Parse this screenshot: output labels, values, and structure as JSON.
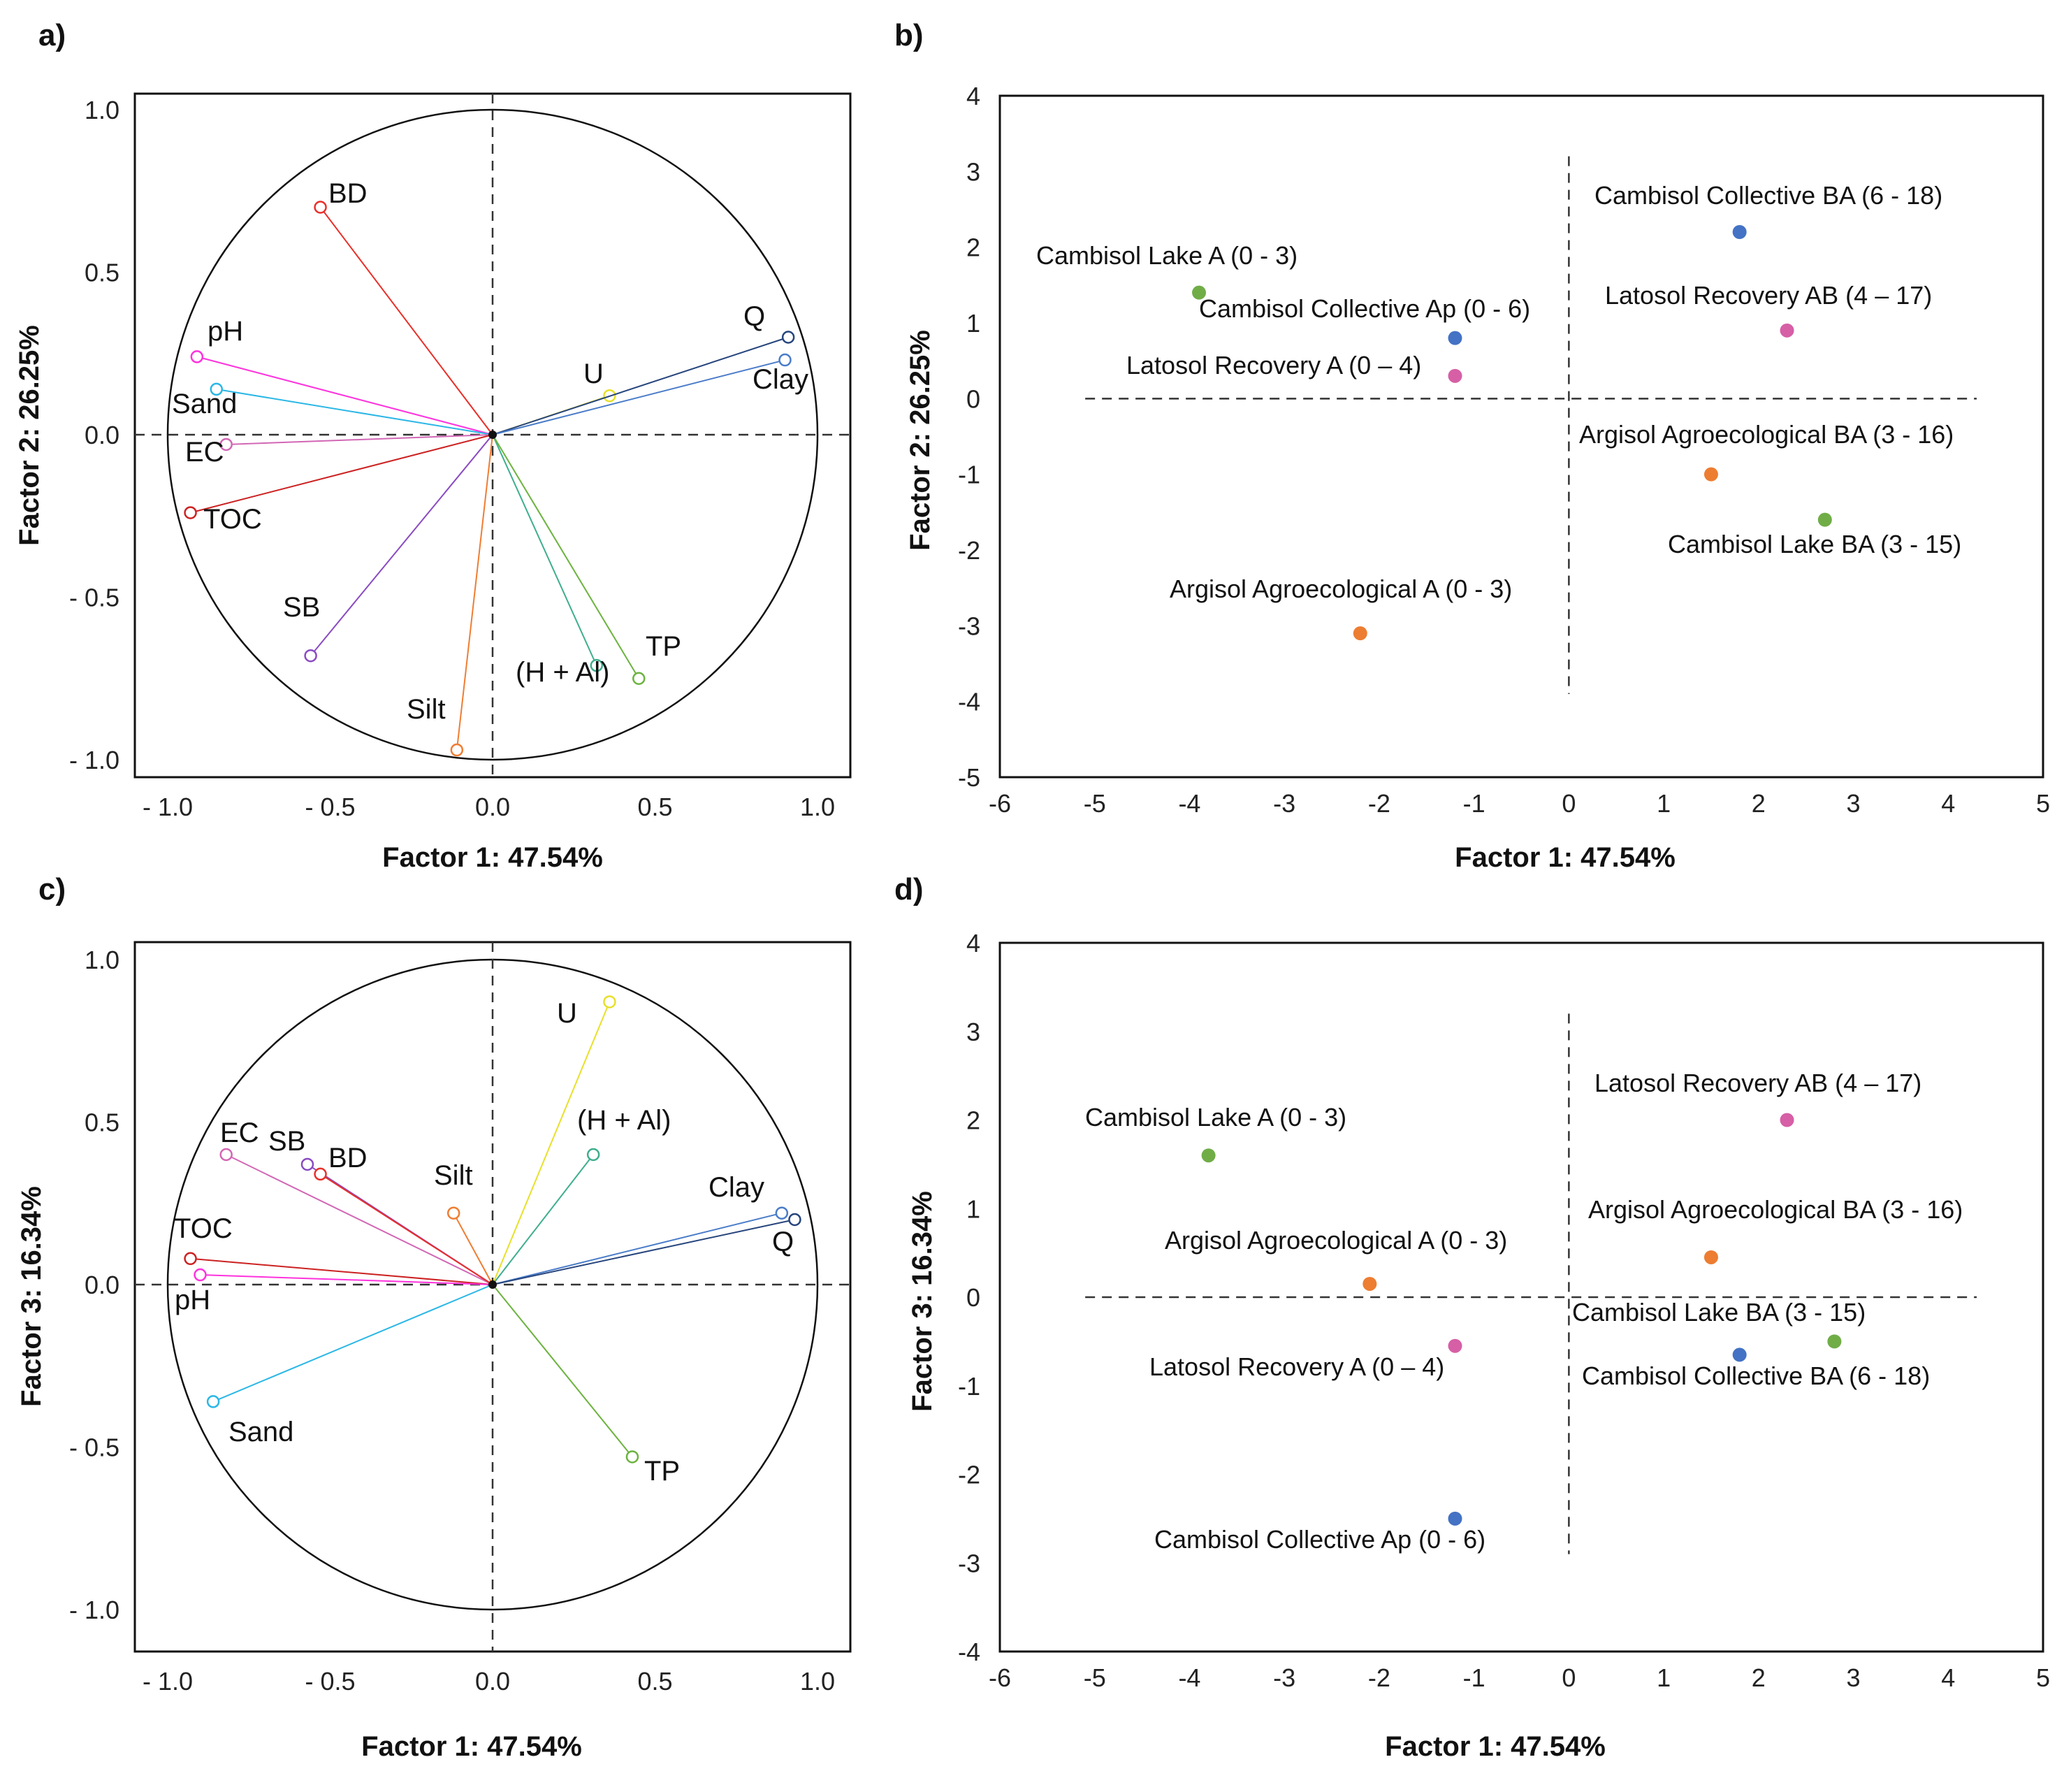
{
  "chart_data": [
    {
      "panel": "a)",
      "type": "scatter",
      "subtype": "correlation-circle",
      "xlabel": "Factor 1: 47.54%",
      "ylabel": "Factor 2: 26.25%",
      "xlim": [
        -1.1,
        1.1
      ],
      "ylim": [
        -1.1,
        1.1
      ],
      "xticks": [
        -1.0,
        -0.5,
        0.0,
        0.5,
        1.0
      ],
      "xtick_labels": [
        "- 1.0",
        "- 0.5",
        "0.0",
        "0.5",
        "1.0"
      ],
      "yticks": [
        1.0,
        0.5,
        0.0,
        -0.5,
        -1.0
      ],
      "ytick_labels": [
        "1.0",
        "0.5",
        "0.0",
        "- 0.5",
        "- 1.0"
      ],
      "vectors": [
        {
          "name": "BD",
          "x": -0.53,
          "y": 0.7,
          "color": "#e8302a"
        },
        {
          "name": "pH",
          "x": -0.91,
          "y": 0.24,
          "color": "#ff33dd"
        },
        {
          "name": "Sand",
          "x": -0.85,
          "y": 0.14,
          "color": "#2bb7e6"
        },
        {
          "name": "EC",
          "x": -0.82,
          "y": -0.03,
          "color": "#d267b5"
        },
        {
          "name": "TOC",
          "x": -0.93,
          "y": -0.24,
          "color": "#cc2222"
        },
        {
          "name": "SB",
          "x": -0.56,
          "y": -0.68,
          "color": "#8a4bc2"
        },
        {
          "name": "Silt",
          "x": -0.11,
          "y": -0.97,
          "color": "#ef7d33"
        },
        {
          "name": "(H + Al)",
          "x": 0.32,
          "y": -0.71,
          "color": "#3fae8f"
        },
        {
          "name": "TP",
          "x": 0.45,
          "y": -0.75,
          "color": "#6cb33f"
        },
        {
          "name": "U",
          "x": 0.36,
          "y": 0.12,
          "color": "#e8e02a"
        },
        {
          "name": "Q",
          "x": 0.91,
          "y": 0.3,
          "color": "#27457d"
        },
        {
          "name": "Clay",
          "x": 0.9,
          "y": 0.23,
          "color": "#4a7cc9"
        }
      ]
    },
    {
      "panel": "b)",
      "type": "scatter",
      "xlabel": "Factor 1: 47.54%",
      "ylabel": "Factor 2: 26.25%",
      "xlim": [
        -6,
        5
      ],
      "ylim": [
        -5,
        4
      ],
      "xticks": [
        -6,
        -5,
        -4,
        -3,
        -2,
        -1,
        0,
        1,
        2,
        3,
        4,
        5
      ],
      "yticks": [
        4,
        3,
        2,
        1,
        0,
        -1,
        -2,
        -3,
        -4,
        -5
      ],
      "points": [
        {
          "label": "Cambisol Collective BA (6 - 18)",
          "x": 1.8,
          "y": 2.2,
          "color": "#4472c4"
        },
        {
          "label": "Cambisol Lake A (0 - 3)",
          "x": -3.9,
          "y": 1.4,
          "color": "#70ad47"
        },
        {
          "label": "Latosol Recovery AB (4 – 17)",
          "x": 2.3,
          "y": 0.9,
          "color": "#d65fa6"
        },
        {
          "label": "Cambisol Collective Ap (0 - 6)",
          "x": -1.2,
          "y": 0.8,
          "color": "#4472c4"
        },
        {
          "label": "Latosol Recovery A (0 – 4)",
          "x": -1.2,
          "y": 0.3,
          "color": "#d65fa6"
        },
        {
          "label": "Argisol Agroecological BA (3 - 16)",
          "x": 1.5,
          "y": -1.0,
          "color": "#ed7d31"
        },
        {
          "label": "Cambisol Lake BA (3 - 15)",
          "x": 2.7,
          "y": -1.6,
          "color": "#70ad47"
        },
        {
          "label": "Argisol Agroecological A (0 - 3)",
          "x": -2.2,
          "y": -3.1,
          "color": "#ed7d31"
        }
      ]
    },
    {
      "panel": "c)",
      "type": "scatter",
      "subtype": "correlation-circle",
      "xlabel": "Factor 1: 47.54%",
      "ylabel": "Factor 3: 16.34%",
      "xlim": [
        -1.1,
        1.1
      ],
      "ylim": [
        -1.1,
        1.1
      ],
      "xticks": [
        -1.0,
        -0.5,
        0.0,
        0.5,
        1.0
      ],
      "xtick_labels": [
        "- 1.0",
        "- 0.5",
        "0.0",
        "0.5",
        "1.0"
      ],
      "yticks": [
        1.0,
        0.5,
        0.0,
        -0.5,
        -1.0
      ],
      "ytick_labels": [
        "1.0",
        "0.5",
        "0.0",
        "- 0.5",
        "- 1.0"
      ],
      "vectors": [
        {
          "name": "U",
          "x": 0.36,
          "y": 0.87,
          "color": "#e8e02a"
        },
        {
          "name": "(H + Al)",
          "x": 0.31,
          "y": 0.4,
          "color": "#3fae8f"
        },
        {
          "name": "EC",
          "x": -0.82,
          "y": 0.4,
          "color": "#d267b5"
        },
        {
          "name": "SB",
          "x": -0.57,
          "y": 0.37,
          "color": "#8a4bc2"
        },
        {
          "name": "BD",
          "x": -0.53,
          "y": 0.34,
          "color": "#e8302a"
        },
        {
          "name": "Silt",
          "x": -0.12,
          "y": 0.22,
          "color": "#ef7d33"
        },
        {
          "name": "Clay",
          "x": 0.89,
          "y": 0.22,
          "color": "#4a7cc9"
        },
        {
          "name": "Q",
          "x": 0.93,
          "y": 0.2,
          "color": "#27457d"
        },
        {
          "name": "TOC",
          "x": -0.93,
          "y": 0.08,
          "color": "#cc2222"
        },
        {
          "name": "pH",
          "x": -0.9,
          "y": 0.03,
          "color": "#ff33dd"
        },
        {
          "name": "Sand",
          "x": -0.86,
          "y": -0.36,
          "color": "#2bb7e6"
        },
        {
          "name": "TP",
          "x": 0.43,
          "y": -0.53,
          "color": "#6cb33f"
        }
      ]
    },
    {
      "panel": "d)",
      "type": "scatter",
      "xlabel": "Factor 1: 47.54%",
      "ylabel": "Factor 3: 16.34%",
      "xlim": [
        -6,
        5
      ],
      "ylim": [
        -4,
        4
      ],
      "xticks": [
        -6,
        -5,
        -4,
        -3,
        -2,
        -1,
        0,
        1,
        2,
        3,
        4,
        5
      ],
      "yticks": [
        4,
        3,
        2,
        1,
        0,
        -1,
        -2,
        -3,
        -4
      ],
      "points": [
        {
          "label": "Latosol Recovery AB (4 – 17)",
          "x": 2.3,
          "y": 2.0,
          "color": "#d65fa6"
        },
        {
          "label": "Cambisol Lake A (0 - 3)",
          "x": -3.8,
          "y": 1.6,
          "color": "#70ad47"
        },
        {
          "label": "Argisol Agroecological BA (3 - 16)",
          "x": 1.5,
          "y": 0.45,
          "color": "#ed7d31"
        },
        {
          "label": "Argisol Agroecological A (0 - 3)",
          "x": -2.1,
          "y": 0.15,
          "color": "#ed7d31"
        },
        {
          "label": "Latosol Recovery A (0 – 4)",
          "x": -1.2,
          "y": -0.55,
          "color": "#d65fa6"
        },
        {
          "label": "Cambisol Lake BA (3 - 15)",
          "x": 2.8,
          "y": -0.5,
          "color": "#70ad47"
        },
        {
          "label": "Cambisol Collective BA (6 - 18)",
          "x": 1.8,
          "y": -0.65,
          "color": "#4472c4"
        },
        {
          "label": "Cambisol Collective Ap (0 - 6)",
          "x": -1.2,
          "y": -2.5,
          "color": "#4472c4"
        }
      ]
    }
  ]
}
